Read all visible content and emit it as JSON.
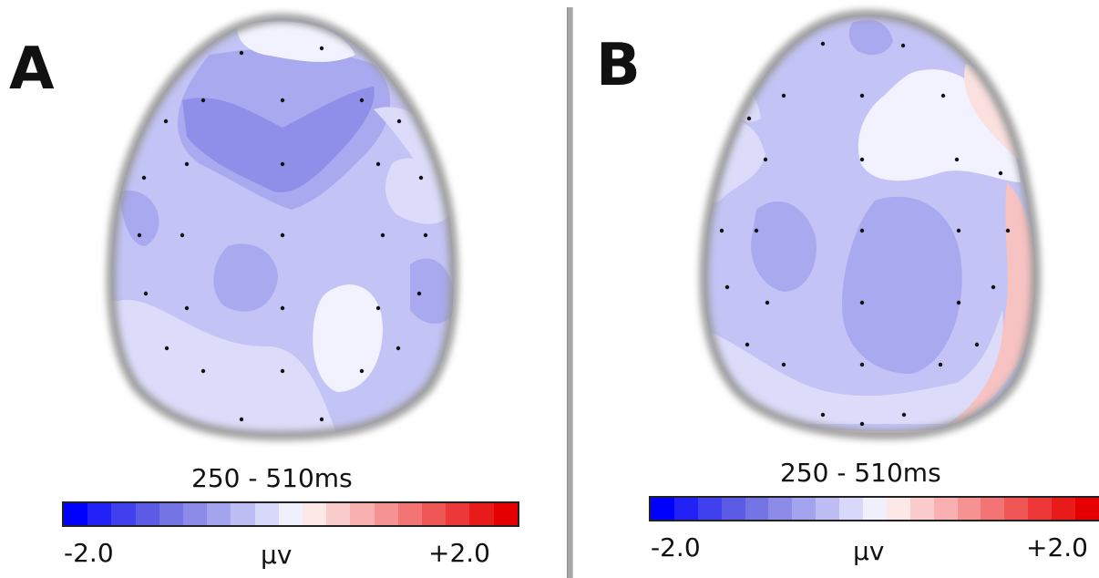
{
  "panels": [
    {
      "letter": "A",
      "time_window": "250 - 510ms",
      "scale": {
        "min": "-2.0",
        "unit": "μv",
        "max": "+2.0"
      }
    },
    {
      "letter": "B",
      "time_window": "250 - 510ms",
      "scale": {
        "min": "-2.0",
        "unit": "μv",
        "max": "+2.0"
      }
    }
  ],
  "colorbar": {
    "colors": [
      "#0000ff",
      "#2222f6",
      "#4040ee",
      "#5b5be6",
      "#7474e4",
      "#8c8ce8",
      "#a4a4ee",
      "#bebef4",
      "#d8d8fa",
      "#f0f0fc",
      "#fde8e8",
      "#fbcccc",
      "#f8b0b0",
      "#f59292",
      "#f27474",
      "#ef5656",
      "#ec3838",
      "#e81a1a",
      "#e40000"
    ]
  },
  "map_colors": {
    "level_dark": "#8f8fe9",
    "level_mid": "#a9a9ef",
    "level_light": "#c3c3f5",
    "level_pale": "#dcdcfa",
    "level_white": "#f2f2fe",
    "level_pink": "#fbe0e0",
    "level_red": "#f6c2c2",
    "outline": "#9a9a9a",
    "electrode": "#111111"
  }
}
